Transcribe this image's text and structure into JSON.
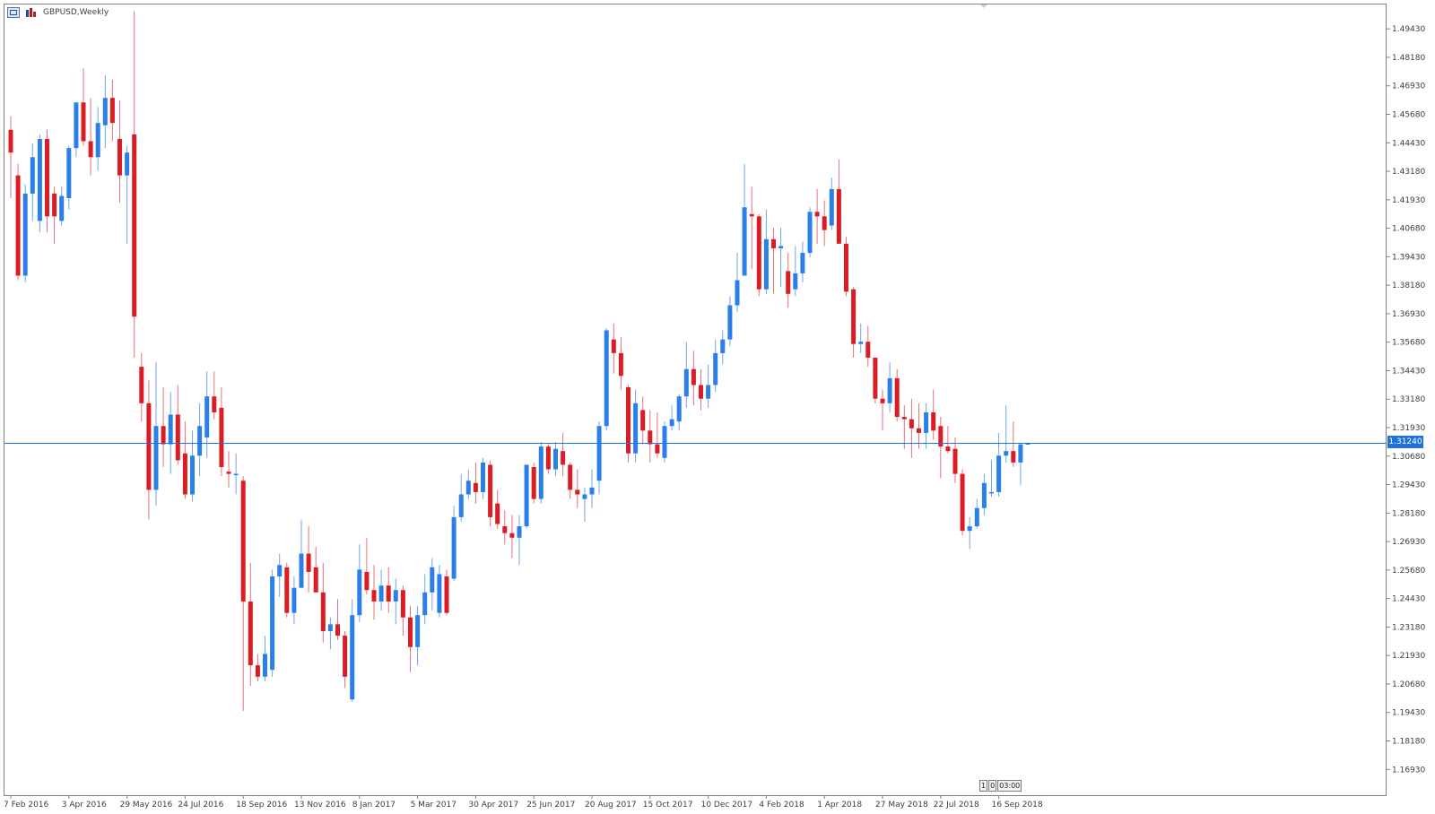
{
  "window": {
    "title": "GBPUSD,Weekly"
  },
  "timeframe_buttons": [
    "1",
    "0",
    "03:00"
  ],
  "current_price_label": "1.31240",
  "colors": {
    "bull": "#2b7fe8",
    "bear": "#dc1c24",
    "bull_wick": "#6ea6ef",
    "bear_wick": "#e8707a",
    "grid_border": "#808080",
    "price_line": "#1e72d8",
    "axis_text": "#3c3c3c"
  },
  "chart_data": {
    "type": "candlestick",
    "symbol": "GBPUSD",
    "period": "Weekly",
    "ylim": [
      1.158,
      1.505
    ],
    "y_ticks": [
      "1.49430",
      "1.48180",
      "1.46930",
      "1.45680",
      "1.44430",
      "1.43180",
      "1.41930",
      "1.40680",
      "1.39430",
      "1.38180",
      "1.36930",
      "1.35680",
      "1.34430",
      "1.33180",
      "1.31930",
      "1.30680",
      "1.29430",
      "1.28180",
      "1.26930",
      "1.25680",
      "1.24430",
      "1.23180",
      "1.21930",
      "1.20680",
      "1.19430",
      "1.18180",
      "1.16930"
    ],
    "x_labels": [
      {
        "label": "7 Feb 2016",
        "index": 0
      },
      {
        "label": "3 Apr 2016",
        "index": 8
      },
      {
        "label": "29 May 2016",
        "index": 16
      },
      {
        "label": "24 Jul 2016",
        "index": 24
      },
      {
        "label": "18 Sep 2016",
        "index": 32
      },
      {
        "label": "13 Nov 2016",
        "index": 40
      },
      {
        "label": "8 Jan 2017",
        "index": 48
      },
      {
        "label": "5 Mar 2017",
        "index": 56
      },
      {
        "label": "30 Apr 2017",
        "index": 64
      },
      {
        "label": "25 Jun 2017",
        "index": 72
      },
      {
        "label": "20 Aug 2017",
        "index": 80
      },
      {
        "label": "15 Oct 2017",
        "index": 88
      },
      {
        "label": "10 Dec 2017",
        "index": 96
      },
      {
        "label": "4 Feb 2018",
        "index": 104
      },
      {
        "label": "1 Apr 2018",
        "index": 112
      },
      {
        "label": "27 May 2018",
        "index": 120
      },
      {
        "label": "22 Jul 2018",
        "index": 128
      },
      {
        "label": "16 Sep 2018",
        "index": 136
      }
    ],
    "current_price": 1.3124,
    "candles": [
      {
        "o": 1.45,
        "h": 1.456,
        "l": 1.42,
        "c": 1.44
      },
      {
        "o": 1.43,
        "h": 1.435,
        "l": 1.384,
        "c": 1.386
      },
      {
        "o": 1.386,
        "h": 1.426,
        "l": 1.383,
        "c": 1.422
      },
      {
        "o": 1.422,
        "h": 1.444,
        "l": 1.41,
        "c": 1.438
      },
      {
        "o": 1.41,
        "h": 1.448,
        "l": 1.405,
        "c": 1.446
      },
      {
        "o": 1.446,
        "h": 1.45,
        "l": 1.405,
        "c": 1.412
      },
      {
        "o": 1.422,
        "h": 1.425,
        "l": 1.4,
        "c": 1.412
      },
      {
        "o": 1.41,
        "h": 1.425,
        "l": 1.408,
        "c": 1.421
      },
      {
        "o": 1.42,
        "h": 1.443,
        "l": 1.415,
        "c": 1.442
      },
      {
        "o": 1.442,
        "h": 1.461,
        "l": 1.438,
        "c": 1.462
      },
      {
        "o": 1.462,
        "h": 1.477,
        "l": 1.443,
        "c": 1.445
      },
      {
        "o": 1.445,
        "h": 1.464,
        "l": 1.43,
        "c": 1.438
      },
      {
        "o": 1.438,
        "h": 1.46,
        "l": 1.432,
        "c": 1.453
      },
      {
        "o": 1.452,
        "h": 1.474,
        "l": 1.442,
        "c": 1.464
      },
      {
        "o": 1.464,
        "h": 1.472,
        "l": 1.445,
        "c": 1.453
      },
      {
        "o": 1.446,
        "h": 1.463,
        "l": 1.418,
        "c": 1.43
      },
      {
        "o": 1.43,
        "h": 1.443,
        "l": 1.4,
        "c": 1.44
      },
      {
        "o": 1.448,
        "h": 1.502,
        "l": 1.35,
        "c": 1.368
      },
      {
        "o": 1.346,
        "h": 1.352,
        "l": 1.322,
        "c": 1.33
      },
      {
        "o": 1.33,
        "h": 1.34,
        "l": 1.279,
        "c": 1.292
      },
      {
        "o": 1.292,
        "h": 1.348,
        "l": 1.285,
        "c": 1.32
      },
      {
        "o": 1.32,
        "h": 1.337,
        "l": 1.302,
        "c": 1.312
      },
      {
        "o": 1.312,
        "h": 1.335,
        "l": 1.299,
        "c": 1.325
      },
      {
        "o": 1.325,
        "h": 1.338,
        "l": 1.303,
        "c": 1.305
      },
      {
        "o": 1.308,
        "h": 1.322,
        "l": 1.288,
        "c": 1.29
      },
      {
        "o": 1.29,
        "h": 1.318,
        "l": 1.287,
        "c": 1.307
      },
      {
        "o": 1.307,
        "h": 1.33,
        "l": 1.298,
        "c": 1.32
      },
      {
        "o": 1.315,
        "h": 1.344,
        "l": 1.306,
        "c": 1.333
      },
      {
        "o": 1.333,
        "h": 1.344,
        "l": 1.323,
        "c": 1.326
      },
      {
        "o": 1.328,
        "h": 1.337,
        "l": 1.298,
        "c": 1.302
      },
      {
        "o": 1.3,
        "h": 1.309,
        "l": 1.293,
        "c": 1.299
      },
      {
        "o": 1.299,
        "h": 1.308,
        "l": 1.29,
        "c": 1.299
      },
      {
        "o": 1.296,
        "h": 1.298,
        "l": 1.195,
        "c": 1.243
      },
      {
        "o": 1.243,
        "h": 1.26,
        "l": 1.206,
        "c": 1.215
      },
      {
        "o": 1.215,
        "h": 1.22,
        "l": 1.208,
        "c": 1.21
      },
      {
        "o": 1.21,
        "h": 1.228,
        "l": 1.208,
        "c": 1.22
      },
      {
        "o": 1.213,
        "h": 1.257,
        "l": 1.21,
        "c": 1.254
      },
      {
        "o": 1.254,
        "h": 1.264,
        "l": 1.245,
        "c": 1.259
      },
      {
        "o": 1.258,
        "h": 1.26,
        "l": 1.236,
        "c": 1.238
      },
      {
        "o": 1.238,
        "h": 1.254,
        "l": 1.233,
        "c": 1.249
      },
      {
        "o": 1.249,
        "h": 1.279,
        "l": 1.249,
        "c": 1.264
      },
      {
        "o": 1.264,
        "h": 1.276,
        "l": 1.247,
        "c": 1.256
      },
      {
        "o": 1.258,
        "h": 1.267,
        "l": 1.249,
        "c": 1.247
      },
      {
        "o": 1.247,
        "h": 1.26,
        "l": 1.225,
        "c": 1.23
      },
      {
        "o": 1.23,
        "h": 1.236,
        "l": 1.222,
        "c": 1.233
      },
      {
        "o": 1.233,
        "h": 1.244,
        "l": 1.226,
        "c": 1.228
      },
      {
        "o": 1.228,
        "h": 1.23,
        "l": 1.205,
        "c": 1.21
      },
      {
        "o": 1.2,
        "h": 1.244,
        "l": 1.199,
        "c": 1.237
      },
      {
        "o": 1.237,
        "h": 1.268,
        "l": 1.234,
        "c": 1.257
      },
      {
        "o": 1.256,
        "h": 1.271,
        "l": 1.246,
        "c": 1.248
      },
      {
        "o": 1.248,
        "h": 1.259,
        "l": 1.235,
        "c": 1.243
      },
      {
        "o": 1.243,
        "h": 1.257,
        "l": 1.239,
        "c": 1.25
      },
      {
        "o": 1.25,
        "h": 1.258,
        "l": 1.238,
        "c": 1.243
      },
      {
        "o": 1.243,
        "h": 1.253,
        "l": 1.233,
        "c": 1.248
      },
      {
        "o": 1.248,
        "h": 1.25,
        "l": 1.228,
        "c": 1.236
      },
      {
        "o": 1.236,
        "h": 1.241,
        "l": 1.212,
        "c": 1.223
      },
      {
        "o": 1.223,
        "h": 1.241,
        "l": 1.215,
        "c": 1.237
      },
      {
        "o": 1.237,
        "h": 1.255,
        "l": 1.233,
        "c": 1.247
      },
      {
        "o": 1.247,
        "h": 1.262,
        "l": 1.239,
        "c": 1.258
      },
      {
        "o": 1.238,
        "h": 1.259,
        "l": 1.236,
        "c": 1.255
      },
      {
        "o": 1.254,
        "h": 1.257,
        "l": 1.237,
        "c": 1.238
      },
      {
        "o": 1.253,
        "h": 1.285,
        "l": 1.252,
        "c": 1.28
      },
      {
        "o": 1.28,
        "h": 1.299,
        "l": 1.278,
        "c": 1.29
      },
      {
        "o": 1.29,
        "h": 1.301,
        "l": 1.288,
        "c": 1.296
      },
      {
        "o": 1.295,
        "h": 1.304,
        "l": 1.286,
        "c": 1.291
      },
      {
        "o": 1.291,
        "h": 1.306,
        "l": 1.288,
        "c": 1.304
      },
      {
        "o": 1.303,
        "h": 1.305,
        "l": 1.276,
        "c": 1.28
      },
      {
        "o": 1.286,
        "h": 1.292,
        "l": 1.275,
        "c": 1.277
      },
      {
        "o": 1.276,
        "h": 1.283,
        "l": 1.268,
        "c": 1.273
      },
      {
        "o": 1.273,
        "h": 1.281,
        "l": 1.262,
        "c": 1.271
      },
      {
        "o": 1.271,
        "h": 1.281,
        "l": 1.259,
        "c": 1.276
      },
      {
        "o": 1.276,
        "h": 1.303,
        "l": 1.275,
        "c": 1.303
      },
      {
        "o": 1.302,
        "h": 1.304,
        "l": 1.286,
        "c": 1.288
      },
      {
        "o": 1.288,
        "h": 1.313,
        "l": 1.286,
        "c": 1.311
      },
      {
        "o": 1.311,
        "h": 1.312,
        "l": 1.299,
        "c": 1.301
      },
      {
        "o": 1.301,
        "h": 1.313,
        "l": 1.298,
        "c": 1.31
      },
      {
        "o": 1.309,
        "h": 1.317,
        "l": 1.298,
        "c": 1.303
      },
      {
        "o": 1.303,
        "h": 1.304,
        "l": 1.288,
        "c": 1.292
      },
      {
        "o": 1.292,
        "h": 1.301,
        "l": 1.284,
        "c": 1.29
      },
      {
        "o": 1.288,
        "h": 1.293,
        "l": 1.278,
        "c": 1.29
      },
      {
        "o": 1.29,
        "h": 1.301,
        "l": 1.284,
        "c": 1.293
      },
      {
        "o": 1.296,
        "h": 1.322,
        "l": 1.29,
        "c": 1.32
      },
      {
        "o": 1.32,
        "h": 1.363,
        "l": 1.318,
        "c": 1.362
      },
      {
        "o": 1.358,
        "h": 1.365,
        "l": 1.343,
        "c": 1.352
      },
      {
        "o": 1.352,
        "h": 1.359,
        "l": 1.336,
        "c": 1.342
      },
      {
        "o": 1.337,
        "h": 1.338,
        "l": 1.304,
        "c": 1.308
      },
      {
        "o": 1.308,
        "h": 1.336,
        "l": 1.304,
        "c": 1.33
      },
      {
        "o": 1.327,
        "h": 1.333,
        "l": 1.312,
        "c": 1.318
      },
      {
        "o": 1.318,
        "h": 1.327,
        "l": 1.304,
        "c": 1.312
      },
      {
        "o": 1.312,
        "h": 1.326,
        "l": 1.306,
        "c": 1.308
      },
      {
        "o": 1.306,
        "h": 1.322,
        "l": 1.304,
        "c": 1.32
      },
      {
        "o": 1.32,
        "h": 1.329,
        "l": 1.318,
        "c": 1.323
      },
      {
        "o": 1.322,
        "h": 1.334,
        "l": 1.318,
        "c": 1.333
      },
      {
        "o": 1.333,
        "h": 1.357,
        "l": 1.328,
        "c": 1.345
      },
      {
        "o": 1.345,
        "h": 1.353,
        "l": 1.329,
        "c": 1.338
      },
      {
        "o": 1.338,
        "h": 1.345,
        "l": 1.327,
        "c": 1.332
      },
      {
        "o": 1.332,
        "h": 1.347,
        "l": 1.328,
        "c": 1.338
      },
      {
        "o": 1.338,
        "h": 1.358,
        "l": 1.335,
        "c": 1.352
      },
      {
        "o": 1.352,
        "h": 1.362,
        "l": 1.347,
        "c": 1.358
      },
      {
        "o": 1.358,
        "h": 1.377,
        "l": 1.355,
        "c": 1.373
      },
      {
        "o": 1.373,
        "h": 1.396,
        "l": 1.37,
        "c": 1.384
      },
      {
        "o": 1.386,
        "h": 1.435,
        "l": 1.386,
        "c": 1.416
      },
      {
        "o": 1.413,
        "h": 1.425,
        "l": 1.389,
        "c": 1.412
      },
      {
        "o": 1.412,
        "h": 1.413,
        "l": 1.377,
        "c": 1.38
      },
      {
        "o": 1.38,
        "h": 1.415,
        "l": 1.378,
        "c": 1.402
      },
      {
        "o": 1.402,
        "h": 1.407,
        "l": 1.378,
        "c": 1.398
      },
      {
        "o": 1.398,
        "h": 1.407,
        "l": 1.381,
        "c": 1.399
      },
      {
        "o": 1.388,
        "h": 1.396,
        "l": 1.372,
        "c": 1.378
      },
      {
        "o": 1.38,
        "h": 1.399,
        "l": 1.377,
        "c": 1.387
      },
      {
        "o": 1.387,
        "h": 1.401,
        "l": 1.383,
        "c": 1.396
      },
      {
        "o": 1.396,
        "h": 1.416,
        "l": 1.394,
        "c": 1.414
      },
      {
        "o": 1.414,
        "h": 1.424,
        "l": 1.4,
        "c": 1.412
      },
      {
        "o": 1.412,
        "h": 1.419,
        "l": 1.399,
        "c": 1.406
      },
      {
        "o": 1.408,
        "h": 1.429,
        "l": 1.406,
        "c": 1.424
      },
      {
        "o": 1.424,
        "h": 1.437,
        "l": 1.4,
        "c": 1.4
      },
      {
        "o": 1.4,
        "h": 1.403,
        "l": 1.377,
        "c": 1.379
      },
      {
        "o": 1.38,
        "h": 1.381,
        "l": 1.35,
        "c": 1.356
      },
      {
        "o": 1.356,
        "h": 1.365,
        "l": 1.352,
        "c": 1.357
      },
      {
        "o": 1.357,
        "h": 1.364,
        "l": 1.346,
        "c": 1.35
      },
      {
        "o": 1.35,
        "h": 1.35,
        "l": 1.33,
        "c": 1.332
      },
      {
        "o": 1.332,
        "h": 1.336,
        "l": 1.318,
        "c": 1.33
      },
      {
        "o": 1.33,
        "h": 1.348,
        "l": 1.326,
        "c": 1.341
      },
      {
        "o": 1.341,
        "h": 1.345,
        "l": 1.322,
        "c": 1.324
      },
      {
        "o": 1.324,
        "h": 1.329,
        "l": 1.31,
        "c": 1.323
      },
      {
        "o": 1.323,
        "h": 1.332,
        "l": 1.306,
        "c": 1.319
      },
      {
        "o": 1.319,
        "h": 1.33,
        "l": 1.31,
        "c": 1.317
      },
      {
        "o": 1.317,
        "h": 1.33,
        "l": 1.31,
        "c": 1.326
      },
      {
        "o": 1.326,
        "h": 1.336,
        "l": 1.314,
        "c": 1.318
      },
      {
        "o": 1.32,
        "h": 1.324,
        "l": 1.297,
        "c": 1.311
      },
      {
        "o": 1.311,
        "h": 1.32,
        "l": 1.308,
        "c": 1.309
      },
      {
        "o": 1.31,
        "h": 1.315,
        "l": 1.295,
        "c": 1.299
      },
      {
        "o": 1.299,
        "h": 1.301,
        "l": 1.272,
        "c": 1.274
      },
      {
        "o": 1.274,
        "h": 1.28,
        "l": 1.266,
        "c": 1.276
      },
      {
        "o": 1.276,
        "h": 1.288,
        "l": 1.275,
        "c": 1.284
      },
      {
        "o": 1.284,
        "h": 1.299,
        "l": 1.281,
        "c": 1.295
      },
      {
        "o": 1.291,
        "h": 1.305,
        "l": 1.289,
        "c": 1.291
      },
      {
        "o": 1.291,
        "h": 1.317,
        "l": 1.289,
        "c": 1.307
      },
      {
        "o": 1.307,
        "h": 1.329,
        "l": 1.304,
        "c": 1.309
      },
      {
        "o": 1.309,
        "h": 1.322,
        "l": 1.302,
        "c": 1.304
      },
      {
        "o": 1.304,
        "h": 1.312,
        "l": 1.294,
        "c": 1.312
      },
      {
        "o": 1.3124,
        "h": 1.3128,
        "l": 1.3118,
        "c": 1.3124
      }
    ]
  }
}
